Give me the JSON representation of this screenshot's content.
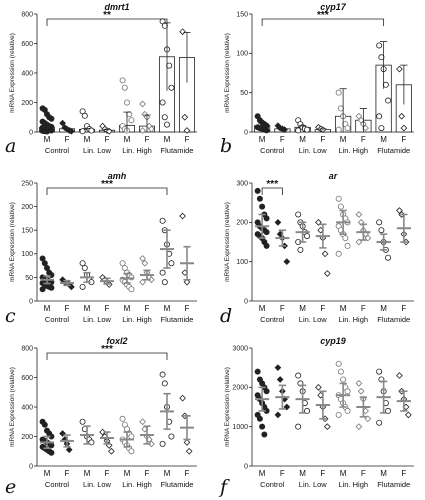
{
  "groups": [
    "Control",
    "Lin. Low",
    "Lin. High",
    "Flutamide"
  ],
  "sexes": [
    "M",
    "F",
    "M",
    "F",
    "M",
    "F",
    "M",
    "F"
  ],
  "panel_labels": [
    "a",
    "b",
    "c",
    "d",
    "e",
    "f"
  ],
  "chart_data": [
    {
      "id": "a",
      "type": "bar",
      "title": "dmrt1",
      "ylabel": "mRNA Expression (relative)",
      "ylim": [
        0,
        800
      ],
      "yticks": [
        0,
        200,
        400,
        600,
        800
      ],
      "categories": [
        "M",
        "F",
        "M",
        "F",
        "M",
        "F",
        "M",
        "F"
      ],
      "values": [
        30,
        22,
        18,
        12,
        45,
        40,
        510,
        505
      ],
      "errors": [
        10,
        5,
        6,
        5,
        90,
        75,
        230,
        170
      ],
      "points": [
        [
          160,
          150,
          120,
          100,
          90,
          70,
          60,
          50,
          40,
          35,
          30,
          25,
          20,
          15,
          10,
          8,
          5,
          3
        ],
        [
          60,
          30,
          20,
          10,
          5
        ],
        [
          140,
          110,
          40,
          20,
          10,
          5
        ],
        [
          40,
          20,
          10,
          5
        ],
        [
          350,
          300,
          200,
          120,
          80,
          40,
          20,
          10
        ],
        [
          190,
          120,
          100,
          40,
          20,
          10
        ],
        [
          750,
          720,
          560,
          450,
          300,
          200,
          100,
          50
        ],
        [
          680,
          100,
          10
        ]
      ],
      "annotation": {
        "text": "**",
        "from": 0,
        "to": 6
      }
    },
    {
      "id": "b",
      "type": "bar",
      "title": "cyp17",
      "ylabel": "mRNA Expression (relative)",
      "ylim": [
        0,
        150
      ],
      "yticks": [
        0,
        50,
        100,
        150
      ],
      "categories": [
        "M",
        "F",
        "M",
        "F",
        "M",
        "F",
        "M",
        "F"
      ],
      "values": [
        8,
        4,
        6,
        3,
        20,
        15,
        85,
        60
      ],
      "errors": [
        3,
        1,
        2,
        1,
        35,
        15,
        30,
        25
      ],
      "points": [
        [
          20,
          15,
          12,
          10,
          8,
          6,
          5,
          4,
          3,
          2
        ],
        [
          8,
          5,
          4,
          3
        ],
        [
          15,
          10,
          6,
          4,
          3,
          2
        ],
        [
          6,
          4,
          3
        ],
        [
          50,
          30,
          20,
          10,
          5,
          3
        ],
        [
          20,
          15,
          10,
          5
        ],
        [
          110,
          95,
          80,
          60,
          40,
          20,
          5
        ],
        [
          80,
          20,
          5
        ]
      ],
      "annotation": {
        "text": "***",
        "from": 0,
        "to": 6
      }
    },
    {
      "id": "c",
      "type": "scatter",
      "title": "amh",
      "ylabel": "mRNA Expression (relative)",
      "ylim": [
        0,
        250
      ],
      "yticks": [
        0,
        50,
        100,
        150,
        200,
        250
      ],
      "categories": [
        "M",
        "F",
        "M",
        "F",
        "M",
        "F",
        "M",
        "F"
      ],
      "values": [
        45,
        38,
        50,
        42,
        48,
        55,
        110,
        80
      ],
      "errors": [
        8,
        5,
        10,
        6,
        10,
        10,
        40,
        35
      ],
      "points": [
        [
          90,
          80,
          70,
          60,
          55,
          50,
          48,
          45,
          42,
          40,
          38,
          35,
          32,
          30,
          28,
          25
        ],
        [
          45,
          40,
          38,
          35,
          30
        ],
        [
          80,
          70,
          55,
          45,
          40,
          30
        ],
        [
          50,
          45,
          40,
          35
        ],
        [
          80,
          70,
          60,
          55,
          50,
          45,
          40,
          35,
          30,
          25
        ],
        [
          90,
          80,
          60,
          50,
          45,
          40
        ],
        [
          170,
          150,
          120,
          100,
          80,
          60,
          40
        ],
        [
          180,
          60,
          40
        ]
      ],
      "annotation": {
        "text": "***",
        "from": 0,
        "to": 6
      }
    },
    {
      "id": "d",
      "type": "scatter",
      "title": "ar",
      "ylabel": "mRNA Expression (relative)",
      "ylim": [
        0,
        300
      ],
      "yticks": [
        0,
        100,
        200,
        300
      ],
      "categories": [
        "M",
        "F",
        "M",
        "F",
        "M",
        "F",
        "M",
        "F"
      ],
      "values": [
        190,
        160,
        175,
        165,
        200,
        175,
        150,
        185
      ],
      "errors": [
        30,
        20,
        25,
        30,
        30,
        20,
        20,
        35
      ],
      "points": [
        [
          280,
          260,
          240,
          220,
          210,
          200,
          190,
          185,
          180,
          175,
          170,
          165,
          160,
          150,
          140
        ],
        [
          200,
          170,
          160,
          140,
          100
        ],
        [
          220,
          200,
          190,
          175,
          165,
          150,
          130
        ],
        [
          200,
          180,
          160,
          120,
          70
        ],
        [
          260,
          240,
          220,
          210,
          200,
          190,
          180,
          170,
          160,
          140,
          120
        ],
        [
          220,
          200,
          180,
          170,
          160,
          150
        ],
        [
          200,
          180,
          150,
          130,
          110
        ],
        [
          230,
          220,
          170,
          150
        ]
      ],
      "annotation": {
        "text": "***",
        "from": 0,
        "to": 1
      }
    },
    {
      "id": "e",
      "type": "scatter",
      "title": "foxl2",
      "ylabel": "mRNA Expression (relative)",
      "ylim": [
        0,
        800
      ],
      "yticks": [
        0,
        200,
        400,
        600,
        800
      ],
      "categories": [
        "M",
        "F",
        "M",
        "F",
        "M",
        "F",
        "M",
        "F"
      ],
      "values": [
        160,
        170,
        210,
        190,
        180,
        210,
        370,
        260
      ],
      "errors": [
        40,
        40,
        60,
        40,
        50,
        60,
        120,
        80
      ],
      "points": [
        [
          300,
          280,
          240,
          220,
          200,
          180,
          170,
          160,
          150,
          140,
          130,
          120,
          110,
          100,
          90
        ],
        [
          220,
          180,
          150,
          110
        ],
        [
          300,
          250,
          200,
          180,
          160
        ],
        [
          230,
          200,
          170,
          140,
          100
        ],
        [
          320,
          280,
          250,
          220,
          200,
          180,
          160,
          140,
          120,
          100
        ],
        [
          300,
          250,
          200,
          180,
          150
        ],
        [
          620,
          560,
          400,
          300,
          200,
          150
        ],
        [
          460,
          340,
          160,
          100
        ]
      ],
      "annotation": {
        "text": "***",
        "from": 0,
        "to": 6
      }
    },
    {
      "id": "f",
      "type": "scatter",
      "title": "cyp19",
      "ylabel": "mRNA Expression (relative)",
      "ylim": [
        0,
        3000
      ],
      "yticks": [
        0,
        1000,
        2000,
        3000
      ],
      "categories": [
        "M",
        "F",
        "M",
        "F",
        "M",
        "F",
        "M",
        "F"
      ],
      "values": [
        1700,
        1750,
        1700,
        1550,
        1800,
        1500,
        1750,
        1650
      ],
      "errors": [
        300,
        300,
        350,
        350,
        300,
        250,
        400,
        250
      ],
      "points": [
        [
          2400,
          2200,
          2100,
          2000,
          1900,
          1800,
          1700,
          1600,
          1500,
          1400,
          1300,
          1200,
          1000,
          800
        ],
        [
          2500,
          2200,
          1900,
          1700,
          1500,
          1300
        ],
        [
          2300,
          2100,
          1900,
          1600,
          1400,
          1000
        ],
        [
          2000,
          1800,
          1500,
          1200,
          1000
        ],
        [
          2600,
          2400,
          2200,
          2000,
          1900,
          1800,
          1700,
          1600,
          1500,
          1400,
          1300
        ],
        [
          2100,
          1900,
          1700,
          1400,
          1200,
          1000
        ],
        [
          2400,
          2200,
          1900,
          1600,
          1400,
          1100
        ],
        [
          2300,
          1900,
          1700,
          1500,
          1300
        ]
      ],
      "annotation": null
    }
  ]
}
